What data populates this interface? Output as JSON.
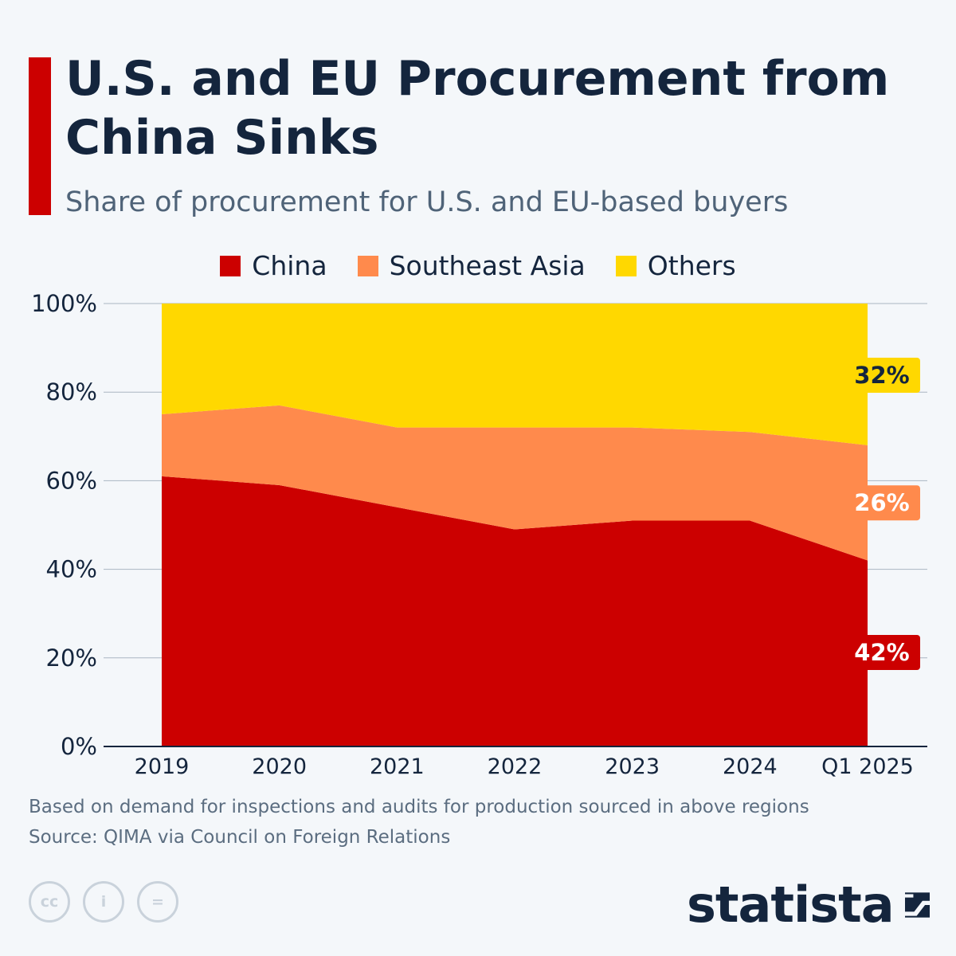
{
  "title": "U.S. and EU Procurement from China Sinks",
  "subtitle": "Share of procurement for U.S. and EU-based buyers",
  "colors": {
    "accent": "#cc0000",
    "china": "#cc0000",
    "southeast_asia": "#ff8a4c",
    "others": "#ffd800",
    "text_dark": "#14253d"
  },
  "chart_data": {
    "type": "area",
    "stacked": true,
    "categories": [
      "2019",
      "2020",
      "2021",
      "2022",
      "2023",
      "2024",
      "Q1 2025"
    ],
    "series": [
      {
        "name": "China",
        "color": "#cc0000",
        "values": [
          61,
          59,
          54,
          49,
          51,
          51,
          42
        ]
      },
      {
        "name": "Southeast Asia",
        "color": "#ff8a4c",
        "values": [
          14,
          18,
          18,
          23,
          21,
          20,
          26
        ]
      },
      {
        "name": "Others",
        "color": "#ffd800",
        "values": [
          25,
          23,
          28,
          28,
          28,
          29,
          32
        ]
      }
    ],
    "ylim": [
      0,
      100
    ],
    "yticks": [
      0,
      20,
      40,
      60,
      80,
      100
    ],
    "ytick_labels": [
      "0%",
      "20%",
      "40%",
      "60%",
      "80%",
      "100%"
    ],
    "grid": true,
    "legend_position": "top-center",
    "end_labels": [
      {
        "series": "Others",
        "text": "32%"
      },
      {
        "series": "Southeast Asia",
        "text": "26%"
      },
      {
        "series": "China",
        "text": "42%"
      }
    ]
  },
  "footnote": "Based on demand for inspections and audits for production sourced in above regions",
  "source": "Source: QIMA via Council on Foreign Relations",
  "license": {
    "cc": "cc",
    "by": "i",
    "nd": "="
  },
  "brand": "statista"
}
